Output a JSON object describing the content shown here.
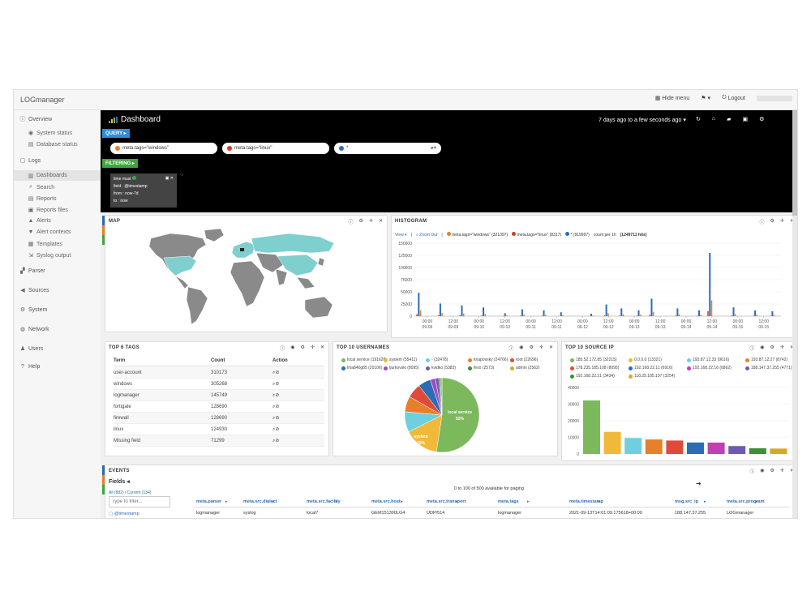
{
  "app": {
    "brand": "LOGmanager",
    "hide_menu": "Hide menu",
    "logout": "Logout"
  },
  "sidebar": {
    "items": [
      {
        "label": "Overview",
        "icon": "info-icon",
        "level": 0
      },
      {
        "label": "System status",
        "icon": "eye-icon",
        "level": 1
      },
      {
        "label": "Database status",
        "icon": "database-icon",
        "level": 1
      },
      {
        "label": "Logs",
        "icon": "file-icon",
        "level": 0
      },
      {
        "label": "Dashboards",
        "icon": "bar-chart-icon",
        "level": 1,
        "active": true
      },
      {
        "label": "Search",
        "icon": "search-icon",
        "level": 1
      },
      {
        "label": "Reports",
        "icon": "report-icon",
        "level": 1
      },
      {
        "label": "Reports files",
        "icon": "files-icon",
        "level": 1
      },
      {
        "label": "Alerts",
        "icon": "bell-icon",
        "level": 1
      },
      {
        "label": "Alert contexts",
        "icon": "filter-icon",
        "level": 1
      },
      {
        "label": "Templates",
        "icon": "template-icon",
        "level": 1
      },
      {
        "label": "Syslog output",
        "icon": "output-icon",
        "level": 1
      },
      {
        "label": "Parser",
        "icon": "parser-icon",
        "level": 0
      },
      {
        "label": "Sources",
        "icon": "megaphone-icon",
        "level": 0
      },
      {
        "label": "System",
        "icon": "gear-icon",
        "level": 0
      },
      {
        "label": "Network",
        "icon": "globe-icon",
        "level": 0
      },
      {
        "label": "Users",
        "icon": "user-icon",
        "level": 0
      },
      {
        "label": "Help",
        "icon": "help-icon",
        "level": 0
      }
    ]
  },
  "dashboard": {
    "title": "Dashboard",
    "time_range": "7 days ago to a few seconds ago",
    "query_label": "QUERY",
    "filtering_label": "FILTERING",
    "queries": [
      {
        "text": "meta.tags=\"windows\"",
        "color": "#e8802b"
      },
      {
        "text": "meta.tags=\"linux\"",
        "color": "#d03a2f"
      },
      {
        "text": "*",
        "color": "#2a6db5"
      }
    ],
    "filter": {
      "line1": "time must",
      "line2": "field : @timestamp",
      "line3": "from : now-7d",
      "line4": "to : now"
    }
  },
  "map_panel": {
    "title": "MAP"
  },
  "histogram": {
    "title": "HISTOGRAM",
    "view_label": "View",
    "zoom_out": "Zoom Out",
    "legend": [
      {
        "label": "meta.tags=\"windows\" (321397)",
        "color": "#e8802b"
      },
      {
        "label": "meta.tags=\"linux\" (8317)",
        "color": "#d03a2f"
      },
      {
        "label": "* (919997)",
        "color": "#2a6db5"
      }
    ],
    "count_label": "count per 1h",
    "hits": "(1249711 hits)",
    "y_ticks": [
      "150000",
      "125000",
      "100000",
      "75000",
      "50000",
      "25000",
      "0"
    ],
    "x_ticks": [
      {
        "top": "00:00",
        "bottom": "09-09"
      },
      {
        "top": "12:00",
        "bottom": "09-09"
      },
      {
        "top": "00:00",
        "bottom": "09-10"
      },
      {
        "top": "12:00",
        "bottom": "09-10"
      },
      {
        "top": "00:00",
        "bottom": "09-11"
      },
      {
        "top": "12:00",
        "bottom": "09-11"
      },
      {
        "top": "00:00",
        "bottom": "09-12"
      },
      {
        "top": "12:00",
        "bottom": "09-12"
      },
      {
        "top": "00:00",
        "bottom": "09-13"
      },
      {
        "top": "12:00",
        "bottom": "09-13"
      },
      {
        "top": "00:00",
        "bottom": "09-14"
      },
      {
        "top": "12:00",
        "bottom": "09-14"
      },
      {
        "top": "00:00",
        "bottom": "09-15"
      },
      {
        "top": "12:00",
        "bottom": "09-15"
      }
    ]
  },
  "top_tags": {
    "title": "TOP 6 TAGS",
    "headers": [
      "Term",
      "Count",
      "Action"
    ],
    "rows": [
      {
        "term": "user-account",
        "count": "310173"
      },
      {
        "term": "windows",
        "count": "305268"
      },
      {
        "term": "logmanager",
        "count": "145749"
      },
      {
        "term": "fortigate",
        "count": "128690"
      },
      {
        "term": "firewall",
        "count": "128690"
      },
      {
        "term": "linux",
        "count": "124930"
      },
      {
        "term": "Missing field",
        "count": "71299"
      }
    ]
  },
  "top_usernames": {
    "title": "TOP 10 USERNAMES",
    "legend": [
      {
        "label": "local service (191628)",
        "color": "#7cb85c"
      },
      {
        "label": "system (55411)",
        "color": "#f0b93a"
      },
      {
        "label": "- (32478)",
        "color": "#6ecfdf"
      },
      {
        "label": "knapovsky (24766)",
        "color": "#e8802b"
      },
      {
        "label": "root (22696)",
        "color": "#e04a3a"
      },
      {
        "label": "lma840g85 (20106)",
        "color": "#2a6db5"
      },
      {
        "label": "tjurkovski (8095)",
        "color": "#9b4ec0"
      },
      {
        "label": "kvidko (5383)",
        "color": "#6e5ab0"
      },
      {
        "label": "fexo (2573)",
        "color": "#3a8f3a"
      },
      {
        "label": "admin (2562)",
        "color": "#d6a82a"
      }
    ],
    "slice_labels": [
      {
        "text": "local service",
        "pct": "52%"
      },
      {
        "text": "system",
        "pct": "15%"
      }
    ]
  },
  "top_source_ip": {
    "title": "TOP 10 SOURCE IP",
    "legend": [
      {
        "label": "185.52.172.85 (32215)",
        "color": "#7cb85c"
      },
      {
        "label": "0.0.0.0 (13321)",
        "color": "#f0b93a"
      },
      {
        "label": "193.87.12.33 (9616)",
        "color": "#6ecfdf"
      },
      {
        "label": "193.87.12.27 (8742)",
        "color": "#e8802b"
      },
      {
        "label": "178.235.185.108 (8095)",
        "color": "#e04a3a"
      },
      {
        "label": "192.168.22.11 (6916)",
        "color": "#2a6db5"
      },
      {
        "label": "192.168.22.16 (6862)",
        "color": "#c040b0"
      },
      {
        "label": "188.147.37.255 (4771)",
        "color": "#6e5ab0"
      },
      {
        "label": "192.168.22.21 (3434)",
        "color": "#3a8f3a"
      },
      {
        "label": "118.25.185.197 (3254)",
        "color": "#d6a82a"
      }
    ],
    "y_ticks": [
      "40000",
      "30000",
      "20000",
      "10000",
      "0"
    ]
  },
  "events": {
    "title": "EVENTS",
    "fields_label": "Fields",
    "all_current": "All (882) / Current (134)",
    "filter_placeholder": "Type to filter...",
    "first_field": "@timestamp",
    "paging": "0 to 100 of 500 available for paging",
    "columns": [
      "meta.parser",
      "meta.src.dialect",
      "meta.src.facility",
      "meta.src.host",
      "meta.src.transport",
      "meta.tags",
      "meta.timestamp",
      "msg.src_ip",
      "meta.src.program"
    ],
    "row": [
      "logmanager",
      "syslog",
      "local7",
      "GEM151300LG4",
      "UDP/514",
      "logmanager",
      "2021-09-13T14:01:09.175618+00:00",
      "188.147.37.255",
      "LOGmanager"
    ]
  },
  "chart_data": [
    {
      "type": "bar",
      "title": "TOP 10 SOURCE IP",
      "categories": [
        "185.52.172.85",
        "0.0.0.0",
        "193.87.12.33",
        "193.87.12.27",
        "178.235.185.108",
        "192.168.22.11",
        "192.168.22.16",
        "188.147.37.255",
        "192.168.22.21",
        "118.25.185.197"
      ],
      "values": [
        32215,
        13321,
        9616,
        8742,
        8095,
        6916,
        6862,
        4771,
        3434,
        3254
      ],
      "ylim": [
        0,
        40000
      ]
    },
    {
      "type": "pie",
      "title": "TOP 10 USERNAMES",
      "categories": [
        "local service",
        "system",
        "-",
        "knapovsky",
        "root",
        "lma840g85",
        "tjurkovski",
        "kvidko",
        "fexo",
        "admin"
      ],
      "values": [
        191628,
        55411,
        32478,
        24766,
        22696,
        20106,
        8095,
        5383,
        2573,
        2562
      ]
    },
    {
      "type": "bar",
      "title": "HISTOGRAM",
      "ylim": [
        0,
        150000
      ],
      "series": [
        {
          "name": "*",
          "values": [
            {
              "x": "09-08 20:00",
              "y": 48000
            },
            {
              "x": "09-09 06:00",
              "y": 26000
            },
            {
              "x": "09-09 16:00",
              "y": 22000
            },
            {
              "x": "09-10 02:00",
              "y": 18000
            },
            {
              "x": "09-10 12:00",
              "y": 6000
            },
            {
              "x": "09-10 20:00",
              "y": 14000
            },
            {
              "x": "09-11 06:00",
              "y": 12000
            },
            {
              "x": "09-11 14:00",
              "y": 8000
            },
            {
              "x": "09-12 04:00",
              "y": 5000
            },
            {
              "x": "09-12 11:00",
              "y": 24000
            },
            {
              "x": "09-12 18:00",
              "y": 16000
            },
            {
              "x": "09-13 02:00",
              "y": 12000
            },
            {
              "x": "09-13 08:00",
              "y": 36000
            },
            {
              "x": "09-13 20:00",
              "y": 16000
            },
            {
              "x": "09-14 06:00",
              "y": 12000
            },
            {
              "x": "09-14 11:00",
              "y": 130000
            },
            {
              "x": "09-14 22:00",
              "y": 18000
            },
            {
              "x": "09-15 08:00",
              "y": 12000
            },
            {
              "x": "09-15 16:00",
              "y": 10000
            }
          ]
        }
      ]
    }
  ]
}
